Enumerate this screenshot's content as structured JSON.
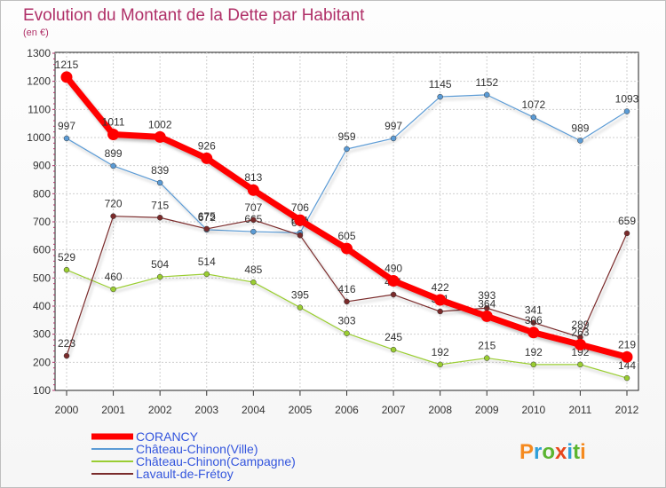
{
  "chart_data": {
    "type": "line",
    "title": "Evolution du Montant de la Dette par Habitant",
    "subtitle": "(en €)",
    "categories": [
      "2000",
      "2001",
      "2002",
      "2003",
      "2004",
      "2005",
      "2006",
      "2007",
      "2008",
      "2009",
      "2010",
      "2011",
      "2012"
    ],
    "y_ticks": [
      "100",
      "200",
      "300",
      "400",
      "500",
      "600",
      "700",
      "800",
      "900",
      "1000",
      "1100",
      "1200",
      "1300"
    ],
    "ylim": [
      100,
      1300
    ],
    "grid": true,
    "legend_position": "bottom-left",
    "series": [
      {
        "name": "CORANCY",
        "color": "#ff0000",
        "legend_color": "#3355dd",
        "values": [
          1215,
          1011,
          1002,
          926,
          813,
          706,
          605,
          490,
          422,
          364,
          306,
          263,
          219
        ]
      },
      {
        "name": "Château-Chinon(Ville)",
        "color": "#5b9bd5",
        "legend_color": "#3355dd",
        "values": [
          997,
          899,
          839,
          672,
          665,
          661,
          959,
          997,
          1145,
          1152,
          1072,
          989,
          1093
        ]
      },
      {
        "name": "Château-Chinon(Campagne)",
        "color": "#9acd32",
        "legend_color": "#3355dd",
        "values": [
          529,
          460,
          504,
          514,
          485,
          395,
          303,
          245,
          192,
          215,
          192,
          192,
          144
        ]
      },
      {
        "name": "Lavault-de-Frétoy",
        "color": "#7a2b2b",
        "legend_color": "#3355dd",
        "values": [
          223,
          720,
          715,
          675,
          707,
          652,
          416,
          441,
          381,
          393,
          341,
          289,
          659
        ]
      }
    ]
  },
  "logo": {
    "text": "Proxiti",
    "colors": [
      "#f58a1f",
      "#2f9fd8",
      "#5cb531",
      "#e8471c",
      "#2f9fd8",
      "#5cb531",
      "#f58a1f"
    ]
  }
}
